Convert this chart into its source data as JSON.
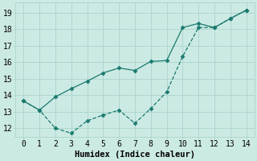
{
  "line1_x": [
    0,
    1,
    2,
    3,
    4,
    5,
    6,
    7,
    8,
    9,
    10,
    11,
    12,
    13,
    14
  ],
  "line1_y": [
    13.65,
    13.1,
    13.9,
    14.4,
    14.85,
    15.35,
    15.65,
    15.5,
    16.05,
    16.1,
    18.1,
    18.35,
    18.1,
    18.65,
    19.15
  ],
  "line2_x": [
    0,
    1,
    2,
    3,
    4,
    5,
    6,
    7,
    8,
    9,
    10,
    11,
    12,
    13,
    14
  ],
  "line2_y": [
    13.65,
    13.1,
    12.0,
    11.7,
    12.45,
    12.8,
    13.1,
    12.3,
    13.2,
    14.2,
    16.35,
    18.1,
    18.1,
    18.65,
    19.15
  ],
  "color": "#1a7a6e",
  "xlabel": "Humidex (Indice chaleur)",
  "xlim": [
    -0.5,
    14.5
  ],
  "ylim": [
    11.5,
    19.6
  ],
  "yticks": [
    12,
    13,
    14,
    15,
    16,
    17,
    18,
    19
  ],
  "xticks": [
    0,
    1,
    2,
    3,
    4,
    5,
    6,
    7,
    8,
    9,
    10,
    11,
    12,
    13,
    14
  ],
  "bg_color": "#cceae4",
  "grid_color": "#aad4cc",
  "marker": "D",
  "markersize": 2.5,
  "linewidth": 0.9,
  "xlabel_fontsize": 7.5,
  "tick_fontsize": 7
}
